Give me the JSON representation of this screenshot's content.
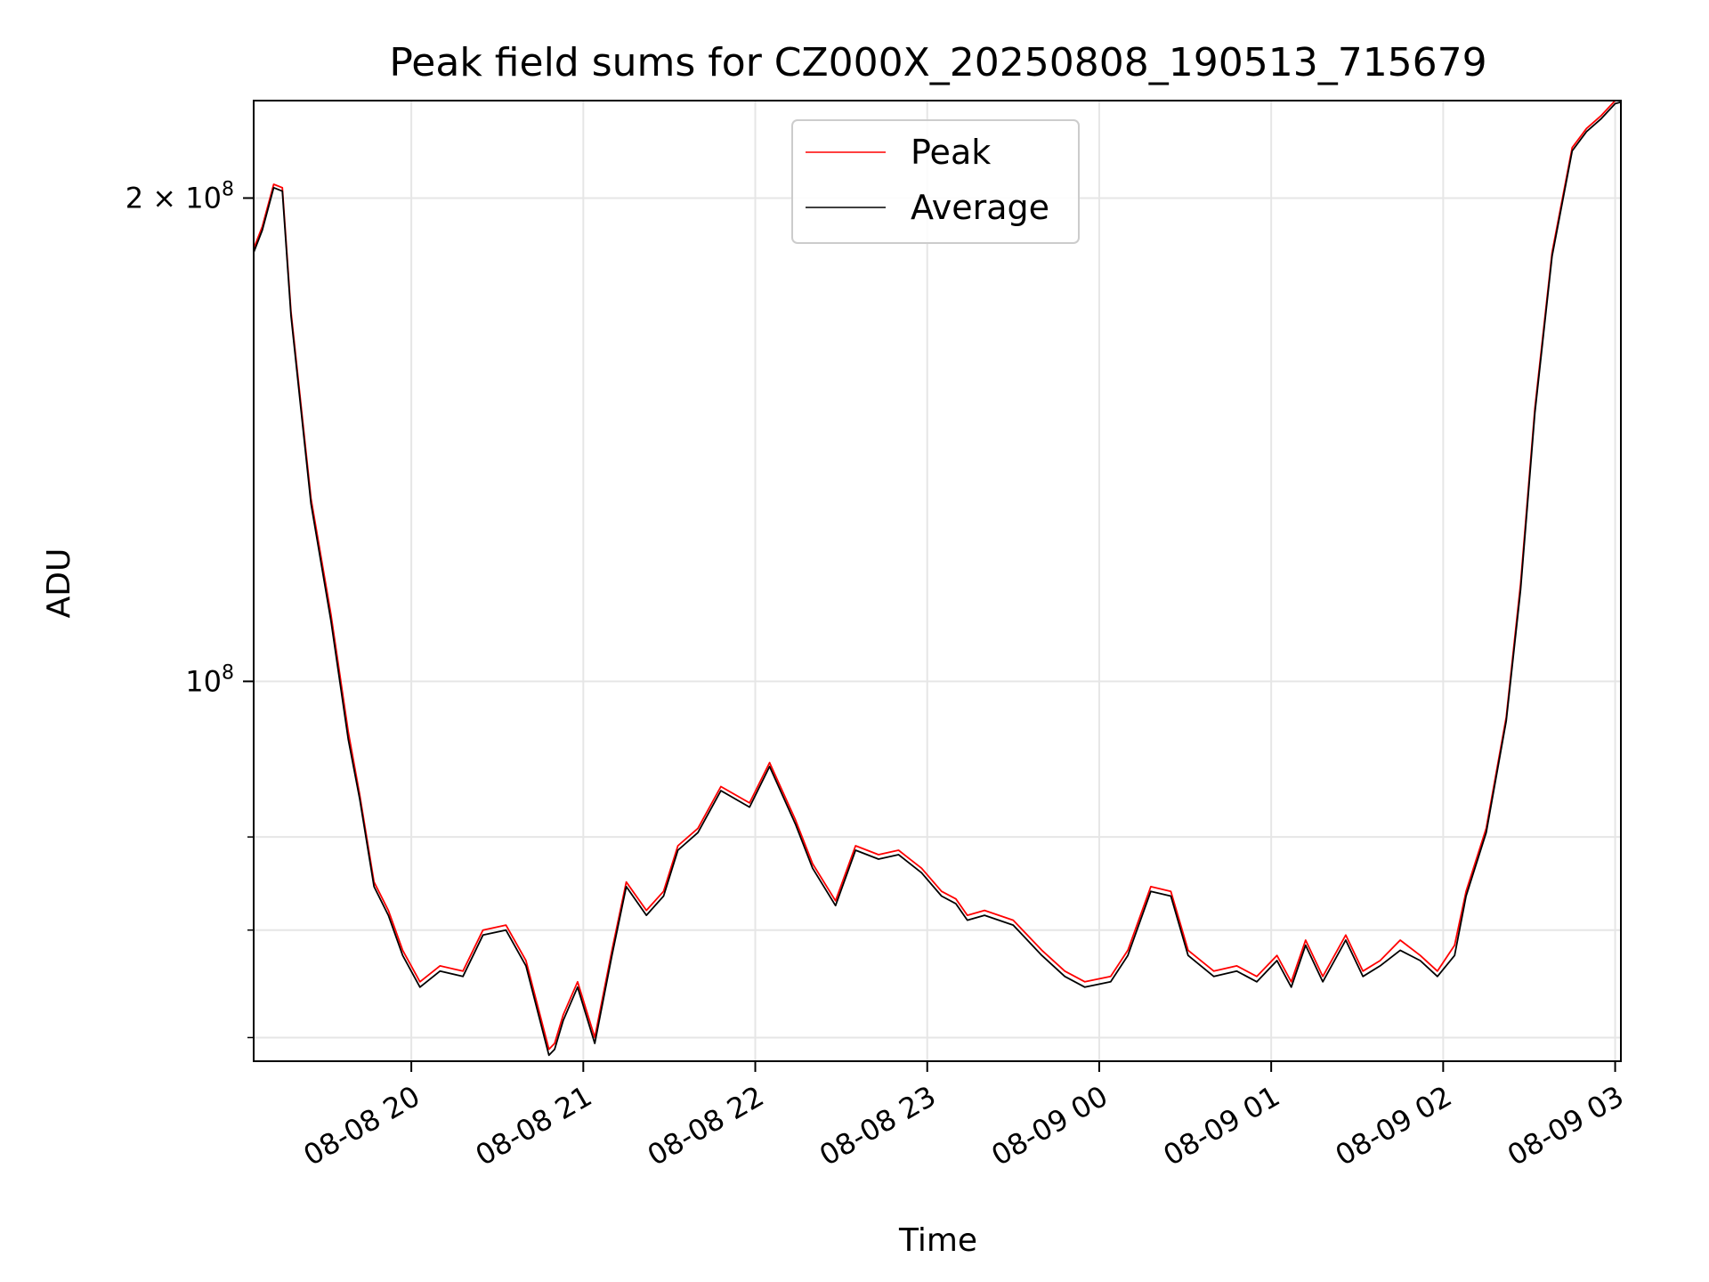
{
  "chart_data": {
    "type": "line",
    "title": "Peak field sums for CZ000X_20250808_190513_715679",
    "xlabel": "Time",
    "ylabel": "ADU",
    "y_scale": "log",
    "grid": true,
    "legend_placement": "top-center",
    "xlim": [
      "2025-08-08 19:05",
      "2025-08-09 03:02"
    ],
    "ylim": [
      58000000,
      230000000
    ],
    "x_ticks": [
      "08-08 20",
      "08-08 21",
      "08-08 22",
      "08-08 23",
      "08-09 00",
      "08-09 01",
      "08-09 02",
      "08-09 03"
    ],
    "y_ticks": [
      {
        "value": 200000000,
        "label_base": "2 × 10",
        "label_exp": "8"
      },
      {
        "value": 100000000,
        "label_base": "10",
        "label_exp": "8"
      }
    ],
    "y_minor_ticks": [
      60000000,
      70000000,
      80000000
    ],
    "series": [
      {
        "name": "Peak",
        "color": "#ff0000",
        "x": [
          "2025-08-08 19:05",
          "2025-08-08 19:08",
          "2025-08-08 19:12",
          "2025-08-08 19:15",
          "2025-08-08 19:18",
          "2025-08-08 19:25",
          "2025-08-08 19:32",
          "2025-08-08 19:38",
          "2025-08-08 19:42",
          "2025-08-08 19:47",
          "2025-08-08 19:52",
          "2025-08-08 19:57",
          "2025-08-08 20:03",
          "2025-08-08 20:10",
          "2025-08-08 20:18",
          "2025-08-08 20:25",
          "2025-08-08 20:33",
          "2025-08-08 20:40",
          "2025-08-08 20:48",
          "2025-08-08 20:50",
          "2025-08-08 20:53",
          "2025-08-08 20:58",
          "2025-08-08 21:04",
          "2025-08-08 21:10",
          "2025-08-08 21:15",
          "2025-08-08 21:22",
          "2025-08-08 21:28",
          "2025-08-08 21:33",
          "2025-08-08 21:40",
          "2025-08-08 21:48",
          "2025-08-08 21:58",
          "2025-08-08 22:05",
          "2025-08-08 22:14",
          "2025-08-08 22:20",
          "2025-08-08 22:28",
          "2025-08-08 22:35",
          "2025-08-08 22:43",
          "2025-08-08 22:50",
          "2025-08-08 22:58",
          "2025-08-08 23:05",
          "2025-08-08 23:10",
          "2025-08-08 23:14",
          "2025-08-08 23:20",
          "2025-08-08 23:30",
          "2025-08-08 23:40",
          "2025-08-08 23:48",
          "2025-08-08 23:55",
          "2025-08-09 00:04",
          "2025-08-09 00:10",
          "2025-08-09 00:18",
          "2025-08-09 00:25",
          "2025-08-09 00:31",
          "2025-08-09 00:40",
          "2025-08-09 00:48",
          "2025-08-09 00:55",
          "2025-08-09 01:02",
          "2025-08-09 01:07",
          "2025-08-09 01:12",
          "2025-08-09 01:18",
          "2025-08-09 01:26",
          "2025-08-09 01:32",
          "2025-08-09 01:38",
          "2025-08-09 01:45",
          "2025-08-09 01:52",
          "2025-08-09 01:58",
          "2025-08-09 02:04",
          "2025-08-09 02:08",
          "2025-08-09 02:15",
          "2025-08-09 02:22",
          "2025-08-09 02:27",
          "2025-08-09 02:32",
          "2025-08-09 02:38",
          "2025-08-09 02:45",
          "2025-08-09 02:50",
          "2025-08-09 02:55",
          "2025-08-09 03:00",
          "2025-08-09 03:02"
        ],
        "values": [
          186000000,
          192000000,
          204000000,
          203000000,
          170000000,
          130000000,
          110000000,
          93000000,
          85000000,
          75000000,
          72000000,
          68000000,
          65000000,
          66500000,
          66000000,
          70000000,
          70500000,
          67000000,
          59000000,
          59500000,
          62000000,
          65000000,
          60000000,
          68000000,
          75000000,
          72000000,
          74000000,
          79000000,
          81000000,
          86000000,
          84000000,
          89000000,
          82000000,
          77000000,
          73000000,
          79000000,
          78000000,
          78500000,
          76500000,
          74000000,
          73200000,
          71500000,
          72000000,
          71000000,
          68000000,
          66000000,
          65000000,
          65500000,
          68000000,
          74500000,
          74000000,
          68000000,
          66000000,
          66500000,
          65500000,
          67500000,
          65000000,
          69000000,
          65500000,
          69500000,
          66000000,
          67000000,
          69000000,
          67500000,
          66000000,
          68500000,
          74000000,
          81000000,
          95000000,
          115000000,
          148000000,
          185000000,
          215000000,
          221000000,
          225000000,
          230000000,
          230000000
        ]
      },
      {
        "name": "Average",
        "color": "#000000",
        "x": [
          "2025-08-08 19:05",
          "2025-08-08 19:08",
          "2025-08-08 19:12",
          "2025-08-08 19:15",
          "2025-08-08 19:18",
          "2025-08-08 19:25",
          "2025-08-08 19:32",
          "2025-08-08 19:38",
          "2025-08-08 19:42",
          "2025-08-08 19:47",
          "2025-08-08 19:52",
          "2025-08-08 19:57",
          "2025-08-08 20:03",
          "2025-08-08 20:10",
          "2025-08-08 20:18",
          "2025-08-08 20:25",
          "2025-08-08 20:33",
          "2025-08-08 20:40",
          "2025-08-08 20:48",
          "2025-08-08 20:50",
          "2025-08-08 20:53",
          "2025-08-08 20:58",
          "2025-08-08 21:04",
          "2025-08-08 21:10",
          "2025-08-08 21:15",
          "2025-08-08 21:22",
          "2025-08-08 21:28",
          "2025-08-08 21:33",
          "2025-08-08 21:40",
          "2025-08-08 21:48",
          "2025-08-08 21:58",
          "2025-08-08 22:05",
          "2025-08-08 22:14",
          "2025-08-08 22:20",
          "2025-08-08 22:28",
          "2025-08-08 22:35",
          "2025-08-08 22:43",
          "2025-08-08 22:50",
          "2025-08-08 22:58",
          "2025-08-08 23:05",
          "2025-08-08 23:10",
          "2025-08-08 23:14",
          "2025-08-08 23:20",
          "2025-08-08 23:30",
          "2025-08-08 23:40",
          "2025-08-08 23:48",
          "2025-08-08 23:55",
          "2025-08-09 00:04",
          "2025-08-09 00:10",
          "2025-08-09 00:18",
          "2025-08-09 00:25",
          "2025-08-09 00:31",
          "2025-08-09 00:40",
          "2025-08-09 00:48",
          "2025-08-09 00:55",
          "2025-08-09 01:02",
          "2025-08-09 01:07",
          "2025-08-09 01:12",
          "2025-08-09 01:18",
          "2025-08-09 01:26",
          "2025-08-09 01:32",
          "2025-08-09 01:38",
          "2025-08-09 01:45",
          "2025-08-09 01:52",
          "2025-08-09 01:58",
          "2025-08-09 02:04",
          "2025-08-09 02:08",
          "2025-08-09 02:15",
          "2025-08-09 02:22",
          "2025-08-09 02:27",
          "2025-08-09 02:32",
          "2025-08-09 02:38",
          "2025-08-09 02:45",
          "2025-08-09 02:50",
          "2025-08-09 02:55",
          "2025-08-09 03:00",
          "2025-08-09 03:02"
        ],
        "values": [
          185000000,
          191000000,
          203000000,
          202000000,
          169000000,
          129000000,
          109000000,
          92000000,
          84500000,
          74500000,
          71500000,
          67500000,
          64500000,
          66000000,
          65500000,
          69500000,
          70000000,
          66500000,
          58500000,
          59000000,
          61500000,
          64500000,
          59500000,
          67500000,
          74500000,
          71500000,
          73500000,
          78500000,
          80500000,
          85500000,
          83500000,
          88500000,
          81500000,
          76500000,
          72500000,
          78500000,
          77500000,
          78000000,
          76000000,
          73500000,
          72700000,
          71000000,
          71500000,
          70500000,
          67500000,
          65500000,
          64500000,
          65000000,
          67500000,
          74000000,
          73500000,
          67500000,
          65500000,
          66000000,
          65000000,
          67000000,
          64500000,
          68500000,
          65000000,
          69000000,
          65500000,
          66500000,
          68000000,
          67000000,
          65500000,
          67500000,
          73500000,
          80500000,
          94500000,
          114000000,
          147000000,
          184000000,
          214000000,
          220000000,
          224000000,
          229000000,
          229500000
        ]
      }
    ]
  }
}
